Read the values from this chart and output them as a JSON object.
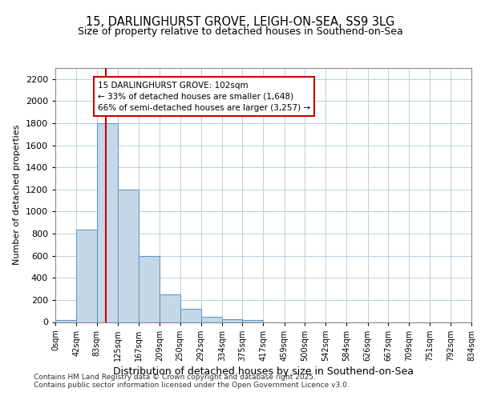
{
  "title1": "15, DARLINGHURST GROVE, LEIGH-ON-SEA, SS9 3LG",
  "title2": "Size of property relative to detached houses in Southend-on-Sea",
  "xlabel": "Distribution of detached houses by size in Southend-on-Sea",
  "ylabel": "Number of detached properties",
  "bin_edges": [
    0,
    42,
    83,
    125,
    167,
    209,
    250,
    292,
    334,
    375,
    417,
    459,
    500,
    542,
    584,
    626,
    667,
    709,
    751,
    792,
    834
  ],
  "bin_counts": [
    20,
    840,
    1800,
    1200,
    600,
    250,
    120,
    50,
    25,
    15,
    0,
    0,
    0,
    0,
    0,
    0,
    0,
    0,
    0,
    0
  ],
  "bar_facecolor": "#c5d8ea",
  "bar_edgecolor": "#6899c0",
  "red_line_x": 102,
  "annotation_title": "15 DARLINGHURST GROVE: 102sqm",
  "annotation_line1": "← 33% of detached houses are smaller (1,648)",
  "annotation_line2": "66% of semi-detached houses are larger (3,257) →",
  "annotation_box_color": "#ffffff",
  "annotation_box_edgecolor": "#cc0000",
  "grid_color": "#b8cfe0",
  "background_color": "#ffffff",
  "footer1": "Contains HM Land Registry data © Crown copyright and database right 2025.",
  "footer2": "Contains public sector information licensed under the Open Government Licence v3.0.",
  "ylim": [
    0,
    2300
  ],
  "yticks": [
    0,
    200,
    400,
    600,
    800,
    1000,
    1200,
    1400,
    1600,
    1800,
    2000,
    2200
  ]
}
